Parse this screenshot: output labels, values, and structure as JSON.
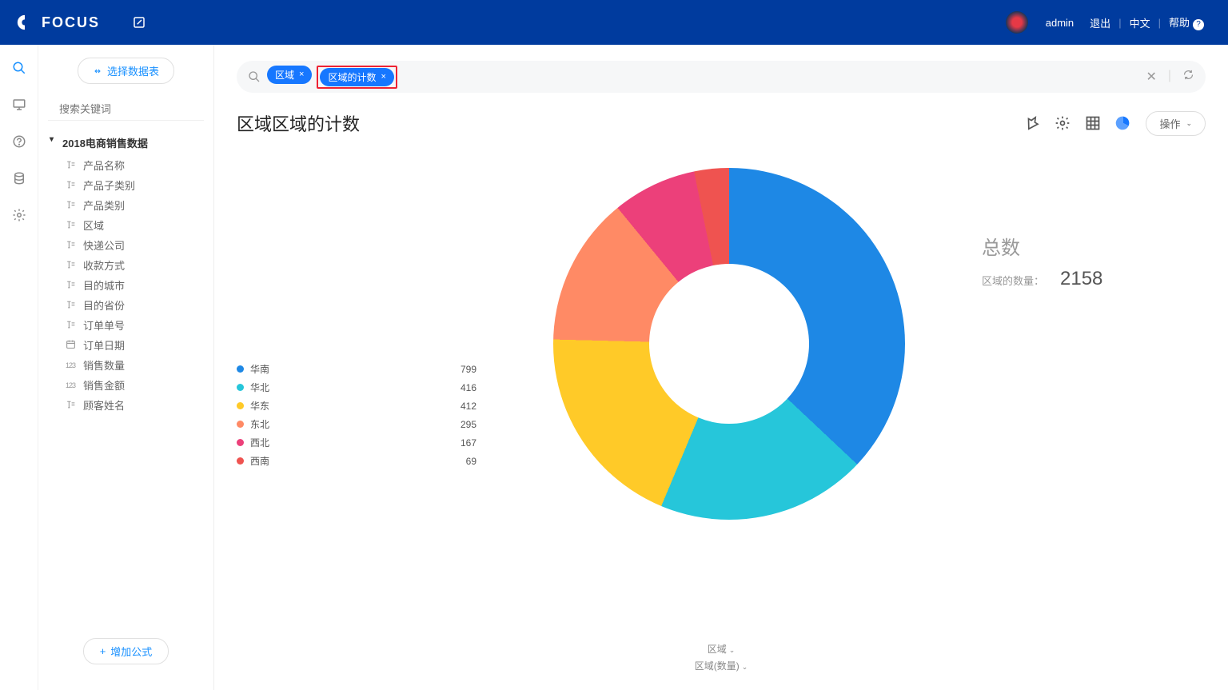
{
  "header": {
    "brand": "FOCUS",
    "user": "admin",
    "logout": "退出",
    "lang": "中文",
    "help": "帮助"
  },
  "sidebar": {
    "select_datasource": "选择数据表",
    "search_placeholder": "搜索关键词",
    "dataset_title": "2018电商销售数据",
    "fields": [
      {
        "label": "产品名称",
        "icon": "T"
      },
      {
        "label": "产品子类别",
        "icon": "T"
      },
      {
        "label": "产品类别",
        "icon": "T"
      },
      {
        "label": "区域",
        "icon": "T"
      },
      {
        "label": "快递公司",
        "icon": "T"
      },
      {
        "label": "收款方式",
        "icon": "T"
      },
      {
        "label": "目的城市",
        "icon": "T"
      },
      {
        "label": "目的省份",
        "icon": "T"
      },
      {
        "label": "订单单号",
        "icon": "T"
      },
      {
        "label": "订单日期",
        "icon": "D"
      },
      {
        "label": "销售数量",
        "icon": "N"
      },
      {
        "label": "销售金额",
        "icon": "N"
      },
      {
        "label": "顾客姓名",
        "icon": "T"
      }
    ],
    "add_formula": "增加公式"
  },
  "query": {
    "chips": [
      {
        "label": "区域",
        "highlight": false
      },
      {
        "label": "区域的计数",
        "highlight": true
      }
    ]
  },
  "page": {
    "title": "区域区域的计数",
    "op_btn": "操作"
  },
  "chart": {
    "type": "donut",
    "inner_radius_ratio": 0.45,
    "legend": [
      {
        "name": "华南",
        "value": 799,
        "color": "#1e88e5"
      },
      {
        "name": "华北",
        "value": 416,
        "color": "#26c6da"
      },
      {
        "name": "华东",
        "value": 412,
        "color": "#ffca28"
      },
      {
        "name": "东北",
        "value": 295,
        "color": "#ff8a65"
      },
      {
        "name": "西北",
        "value": 167,
        "color": "#ec407a"
      },
      {
        "name": "西南",
        "value": 69,
        "color": "#ef5350"
      }
    ],
    "total_label": "总数",
    "count_label": "区域的数量：",
    "total_value": "2158",
    "background": "#ffffff"
  },
  "footer": {
    "dim1": "区域",
    "dim2": "区域(数量)"
  }
}
